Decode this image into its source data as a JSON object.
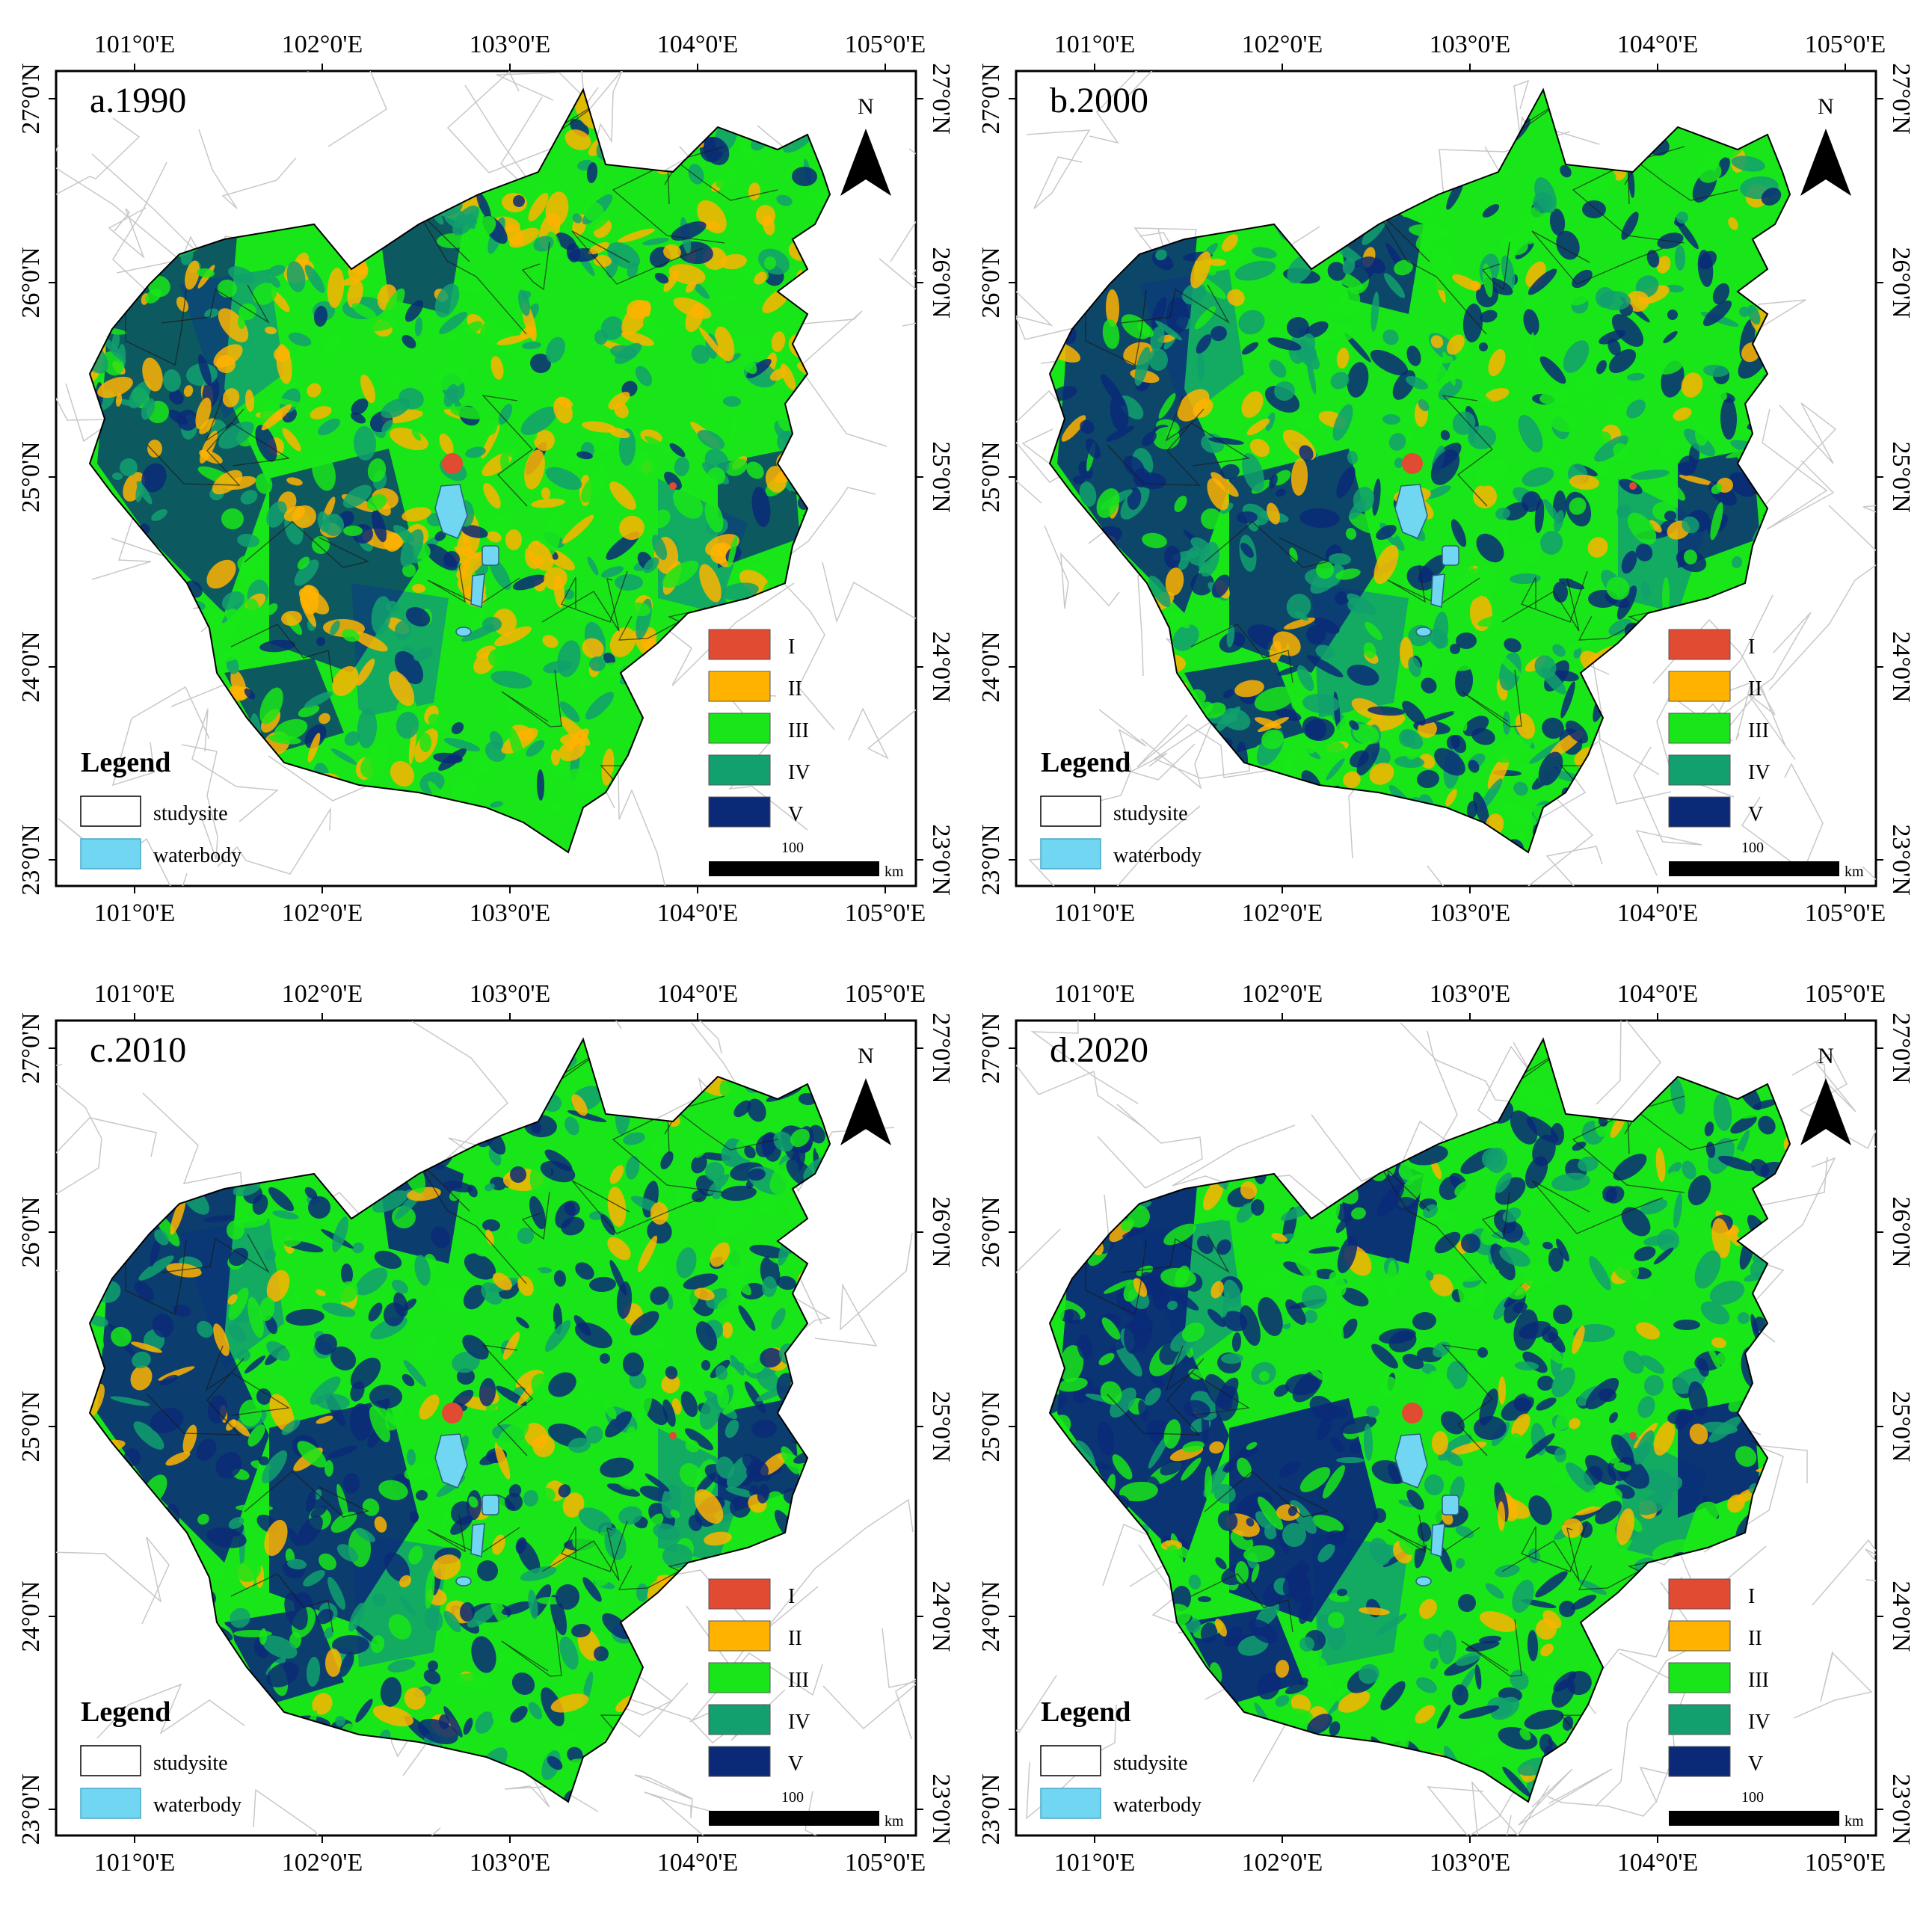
{
  "axes": {
    "lon_ticks": [
      "101°0'E",
      "102°0'E",
      "103°0'E",
      "104°0'E",
      "105°0'E"
    ],
    "lat_ticks": [
      "27°0'N",
      "26°0'N",
      "25°0'N",
      "24°0'N",
      "23°0'N"
    ]
  },
  "panels": [
    {
      "id": "a",
      "title": "a.1990"
    },
    {
      "id": "b",
      "title": "b.2000"
    },
    {
      "id": "c",
      "title": "c.2010"
    },
    {
      "id": "d",
      "title": "d.2020"
    }
  ],
  "north_arrow_label": "N",
  "legend": {
    "title": "Legend",
    "studysite_label": "studysite",
    "waterbody_label": "waterbody"
  },
  "class_legend": [
    {
      "label": "I",
      "color": "#e14b32"
    },
    {
      "label": "II",
      "color": "#ffb300"
    },
    {
      "label": "III",
      "color": "#19e619"
    },
    {
      "label": "IV",
      "color": "#12a06e"
    },
    {
      "label": "V",
      "color": "#0a2a78"
    }
  ],
  "scale_bar": {
    "value": "100",
    "unit": "km"
  },
  "colors": {
    "waterbody": "#70d6f2",
    "frame": "#000000",
    "background_lines": "#c8c8c8"
  }
}
